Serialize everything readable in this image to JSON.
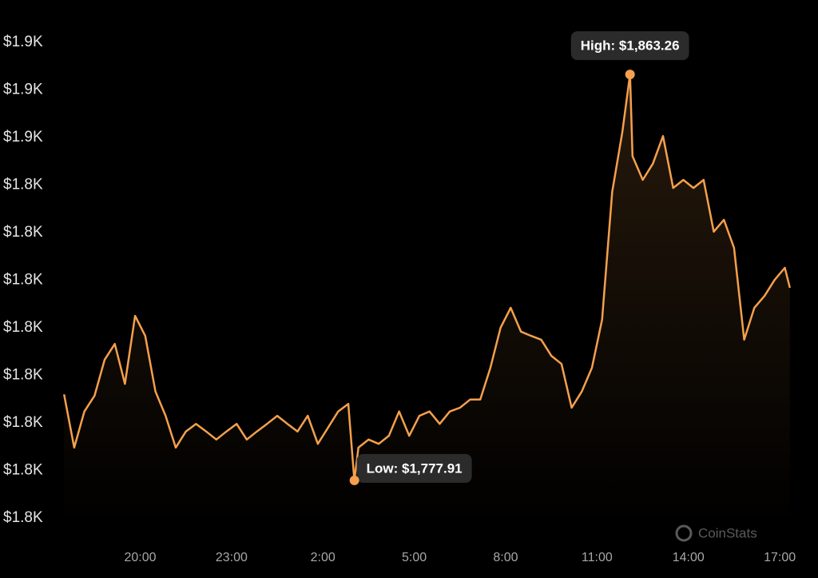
{
  "chart_data": {
    "type": "line",
    "color": "#f5a04c",
    "x": [
      "17:30",
      "17:50",
      "18:10",
      "18:30",
      "18:50",
      "19:10",
      "19:30",
      "19:50",
      "20:10",
      "20:30",
      "20:50",
      "21:10",
      "21:30",
      "21:50",
      "22:10",
      "22:30",
      "22:50",
      "23:10",
      "23:30",
      "23:50",
      "0:10",
      "0:30",
      "0:50",
      "1:10",
      "1:30",
      "1:50",
      "2:10",
      "2:30",
      "2:50",
      "3:02",
      "3:10",
      "3:30",
      "3:50",
      "4:10",
      "4:30",
      "4:50",
      "5:10",
      "5:30",
      "5:50",
      "6:10",
      "6:30",
      "6:50",
      "7:10",
      "7:30",
      "7:50",
      "8:10",
      "8:30",
      "8:50",
      "9:10",
      "9:30",
      "9:50",
      "10:10",
      "10:30",
      "10:50",
      "11:10",
      "11:30",
      "11:50",
      "12:05",
      "12:10",
      "12:30",
      "12:50",
      "13:10",
      "13:30",
      "13:50",
      "14:10",
      "14:30",
      "14:50",
      "15:10",
      "15:30",
      "15:50",
      "16:10",
      "16:30",
      "16:50",
      "17:10",
      "17:20"
    ],
    "values": [
      1796.0,
      1784.8,
      1792.4,
      1795.7,
      1803.3,
      1806.6,
      1798.2,
      1812.5,
      1808.3,
      1796.6,
      1791.5,
      1784.8,
      1788.2,
      1789.8,
      1788.2,
      1786.5,
      1788.2,
      1789.8,
      1786.5,
      1788.2,
      1789.8,
      1791.5,
      1789.8,
      1788.2,
      1791.5,
      1785.6,
      1789.0,
      1792.4,
      1794.0,
      1777.91,
      1784.8,
      1786.5,
      1785.6,
      1787.3,
      1792.4,
      1787.3,
      1791.5,
      1792.4,
      1789.8,
      1792.4,
      1793.2,
      1794.9,
      1794.9,
      1801.6,
      1810.0,
      1814.2,
      1809.2,
      1808.3,
      1807.5,
      1804.1,
      1802.4,
      1793.2,
      1796.6,
      1801.6,
      1811.7,
      1838.6,
      1851.2,
      1863.26,
      1846.1,
      1841.1,
      1844.5,
      1850.3,
      1839.4,
      1841.1,
      1839.4,
      1841.1,
      1830.2,
      1832.7,
      1826.8,
      1807.5,
      1814.2,
      1816.7,
      1820.1,
      1822.6,
      1818.4
    ],
    "xlim": [
      "17:25",
      "17:25"
    ],
    "xticks": [
      "20:00",
      "23:00",
      "2:00",
      "5:00",
      "8:00",
      "11:00",
      "14:00",
      "17:00"
    ],
    "ylim": [
      1770,
      1870
    ],
    "yticks": [
      {
        "value": 1770,
        "label": "$1.8K"
      },
      {
        "value": 1780,
        "label": "$1.8K"
      },
      {
        "value": 1790,
        "label": "$1.8K"
      },
      {
        "value": 1800,
        "label": "$1.8K"
      },
      {
        "value": 1810,
        "label": "$1.8K"
      },
      {
        "value": 1820,
        "label": "$1.8K"
      },
      {
        "value": 1830,
        "label": "$1.8K"
      },
      {
        "value": 1840,
        "label": "$1.8K"
      },
      {
        "value": 1850,
        "label": "$1.9K"
      },
      {
        "value": 1860,
        "label": "$1.9K"
      },
      {
        "value": 1870,
        "label": "$1.9K"
      }
    ],
    "annotations": [
      {
        "x": "12:05",
        "value": 1863.26,
        "label": "High: $1,863.26"
      },
      {
        "x": "3:02",
        "value": 1777.91,
        "label": "Low: $1,777.91"
      }
    ],
    "watermark": "CoinStats"
  }
}
